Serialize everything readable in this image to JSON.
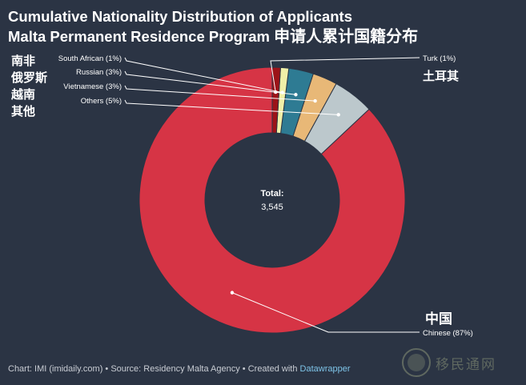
{
  "title": {
    "line1": "Cumulative Nationality Distribution of Applicants",
    "line2": "Malta Permanent Residence Program",
    "line2_cn": "申请人累计国籍分布"
  },
  "overlay_cn": {
    "left_stack": [
      "南非",
      "俄罗斯",
      "越南",
      "其他"
    ],
    "turk": "土耳其",
    "chinese": "中国"
  },
  "footer": {
    "prefix": "Chart: IMI (imidaily.com) • Source: Residency Malta Agency • Created with ",
    "link": "Datawrapper"
  },
  "watermark": {
    "text": "移民通网"
  },
  "chart_data": {
    "type": "pie",
    "variant": "donut",
    "center_label": "Total:",
    "center_value": "3,545",
    "slices": [
      {
        "name": "Chinese",
        "value": 87,
        "label": "Chinese (87%)",
        "color": "#d63445"
      },
      {
        "name": "Others",
        "value": 5,
        "label": "Others (5%)",
        "color": "#bcc8cc"
      },
      {
        "name": "Vietnamese",
        "value": 3,
        "label": "Vietnamese (3%)",
        "color": "#e8b877"
      },
      {
        "name": "Russian",
        "value": 3,
        "label": "Russian (3%)",
        "color": "#2e7b93"
      },
      {
        "name": "South African",
        "value": 1,
        "label": "South African (1%)",
        "color": "#f0f0a8"
      },
      {
        "name": "Turk",
        "value": 1,
        "label": "Turk (1%)",
        "color": "#9c1318"
      }
    ]
  }
}
